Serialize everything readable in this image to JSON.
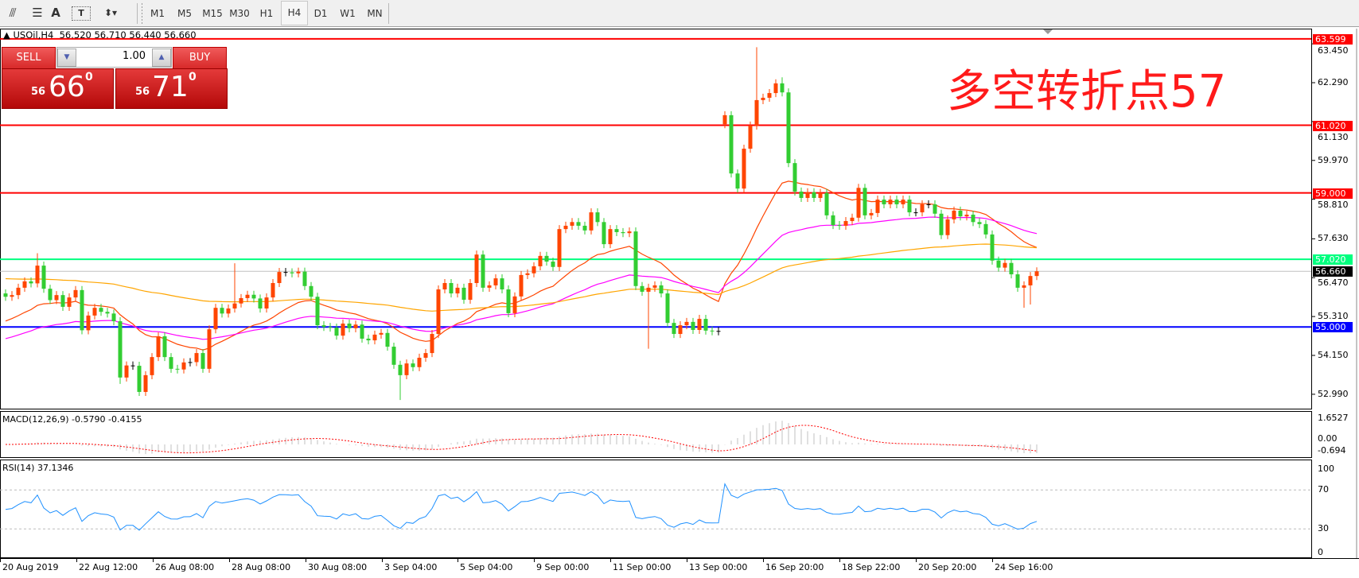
{
  "toolbar": {
    "icons": [
      "fibonacci-fan-icon",
      "grid-lines-icon",
      "text-icon",
      "text-label-icon",
      "arrows-dropdown-icon"
    ],
    "text_icon_label": "A",
    "timeframes": [
      "M1",
      "M5",
      "M15",
      "M30",
      "H1",
      "H4",
      "D1",
      "W1",
      "MN"
    ],
    "selected_timeframe": "H4"
  },
  "chart_header": {
    "symbol": "USOil,H4",
    "ohlc": "56.520 56.710 56.440 56.660"
  },
  "trade_panel": {
    "sell_label": "SELL",
    "buy_label": "BUY",
    "lot": "1.00",
    "sell_price": {
      "prefix": "56",
      "big": "66",
      "sup": "0"
    },
    "buy_price": {
      "prefix": "56",
      "big": "71",
      "sup": "0"
    }
  },
  "annotation": "多空转折点57",
  "price_axis": [
    "63.450",
    "62.290",
    "61.130",
    "59.970",
    "58.810",
    "57.630",
    "56.470",
    "55.310",
    "54.150",
    "52.990"
  ],
  "levels": [
    {
      "value": "63.599",
      "color": "#ff0000"
    },
    {
      "value": "61.020",
      "color": "#ff0000"
    },
    {
      "value": "59.000",
      "color": "#ff0000"
    },
    {
      "value": "57.020",
      "color": "#00ff7f"
    },
    {
      "value": "56.660",
      "color": "#000000",
      "line_color": "#c0c0c0"
    },
    {
      "value": "55.000",
      "color": "#0000ff"
    }
  ],
  "colors": {
    "bull": "#ff4500",
    "bear": "#32cd32",
    "ma_fast": "#ff4500",
    "ma_mid": "#ff00ff",
    "ma_slow": "#ffa500",
    "rsi": "#1e90ff",
    "macd_hist": "#c0c0c0",
    "macd_signal": "#ff0000"
  },
  "macd": {
    "label": "MACD(12,26,9) -0.5790 -0.4155",
    "axis": [
      "1.6527",
      "0.00",
      "-0.694"
    ]
  },
  "rsi": {
    "label": "RSI(14) 37.1346",
    "axis": [
      "100",
      "70",
      "30",
      "0"
    ]
  },
  "time_axis": [
    "20 Aug 2019",
    "22 Aug 12:00",
    "26 Aug 08:00",
    "28 Aug 08:00",
    "30 Aug 08:00",
    "3 Sep 04:00",
    "5 Sep 04:00",
    "9 Sep 00:00",
    "11 Sep 00:00",
    "13 Sep 00:00",
    "16 Sep 20:00",
    "18 Sep 22:00",
    "20 Sep 20:00",
    "24 Sep 16:00"
  ],
  "chart_data": {
    "type": "candlestick",
    "first_open": 56.0,
    "gap_opens": {
      "113": 61.05
    },
    "wick_highs": {
      "5": 57.2,
      "118": 63.35,
      "122": 62.45,
      "36": 56.9
    },
    "wick_lows": {
      "62": 52.82,
      "18": 53.3,
      "160": 55.57,
      "161": 55.67,
      "101": 54.35
    },
    "closes": [
      55.9,
      55.95,
      56.17,
      56.36,
      56.3,
      56.83,
      56.14,
      55.8,
      55.95,
      55.6,
      55.88,
      56.1,
      54.9,
      55.34,
      55.57,
      55.45,
      55.4,
      55.17,
      53.49,
      53.85,
      53.84,
      53.06,
      53.56,
      54.1,
      54.72,
      54.1,
      53.75,
      53.73,
      53.94,
      53.95,
      54.22,
      53.75,
      54.93,
      55.57,
      55.4,
      55.55,
      55.7,
      55.86,
      55.96,
      55.85,
      55.55,
      55.88,
      56.31,
      56.64,
      56.63,
      56.6,
      56.65,
      56.22,
      55.9,
      55.05,
      55.0,
      54.98,
      54.74,
      55.1,
      54.96,
      55.07,
      54.65,
      54.6,
      54.77,
      54.82,
      54.41,
      53.87,
      53.56,
      53.91,
      53.8,
      54.08,
      54.22,
      54.79,
      56.12,
      56.31,
      56.0,
      56.17,
      55.81,
      56.31,
      57.16,
      56.17,
      56.24,
      56.45,
      56.12,
      55.41,
      55.91,
      56.55,
      56.6,
      56.81,
      57.12,
      56.95,
      56.79,
      57.92,
      58.02,
      58.13,
      58.02,
      57.88,
      58.42,
      58.13,
      57.47,
      57.92,
      57.83,
      57.8,
      57.85,
      56.22,
      56.05,
      56.17,
      56.24,
      56.0,
      55.12,
      54.79,
      55.05,
      55.15,
      54.91,
      55.24,
      54.89,
      54.87,
      54.88,
      61.32,
      59.58,
      59.13,
      60.32,
      61.01,
      61.77,
      61.84,
      61.98,
      62.27,
      62.0,
      59.89,
      59.04,
      58.85,
      59.02,
      58.85,
      59.0,
      58.33,
      58.04,
      58.02,
      58.16,
      58.26,
      59.15,
      58.33,
      58.4,
      58.8,
      58.66,
      58.8,
      58.66,
      58.8,
      58.42,
      58.42,
      58.66,
      58.66,
      58.38,
      57.74,
      58.21,
      58.47,
      58.3,
      58.35,
      58.13,
      58.07,
      57.76,
      56.98,
      56.77,
      56.91,
      56.57,
      56.17,
      56.24,
      56.52,
      56.66
    ],
    "ylim": [
      52.6,
      63.9
    ]
  }
}
